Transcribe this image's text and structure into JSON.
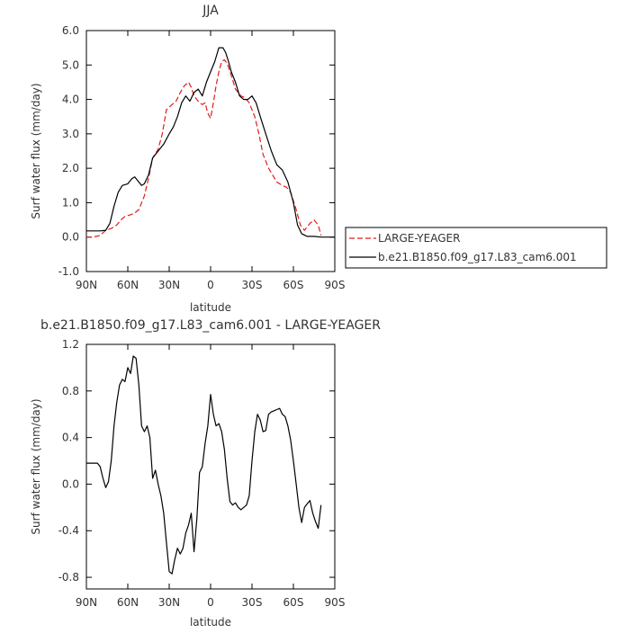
{
  "chart_data": [
    {
      "type": "line",
      "title": "JJA",
      "xlabel": "latitude",
      "ylabel": "Surf water flux (mm/day)",
      "xlim": [
        90,
        -90
      ],
      "ylim": [
        -1.0,
        6.0
      ],
      "x_ticks": [
        90,
        60,
        30,
        0,
        -30,
        -60,
        -90
      ],
      "x_tick_labels": [
        "90N",
        "60N",
        "30N",
        "0",
        "30S",
        "60S",
        "90S"
      ],
      "y_ticks": [
        -1.0,
        0.0,
        1.0,
        2.0,
        3.0,
        4.0,
        5.0,
        6.0
      ],
      "y_tick_labels": [
        "-1.0",
        "0.0",
        "1.0",
        "2.0",
        "3.0",
        "4.0",
        "5.0",
        "6.0"
      ],
      "grid": false,
      "legend_position": "right",
      "series": [
        {
          "name": "LARGE-YEAGER",
          "color": "#e41a1c",
          "style": "dashed",
          "x": [
            90,
            85,
            80,
            76,
            72,
            68,
            65,
            62,
            58,
            55,
            52,
            48,
            45,
            42,
            38,
            35,
            32,
            28,
            25,
            22,
            19,
            16,
            14,
            12,
            10,
            8,
            6,
            4,
            2,
            0,
            -2,
            -4,
            -6,
            -8,
            -10,
            -12,
            -15,
            -18,
            -22,
            -25,
            -28,
            -32,
            -35,
            -38,
            -42,
            -45,
            -48,
            -52,
            -55,
            -58,
            -62,
            -65,
            -68,
            -72,
            -75,
            -78,
            -80
          ],
          "values": [
            0.0,
            0.0,
            0.05,
            0.2,
            0.25,
            0.35,
            0.5,
            0.6,
            0.65,
            0.7,
            0.8,
            1.2,
            1.7,
            2.3,
            2.55,
            3.0,
            3.7,
            3.85,
            3.95,
            4.2,
            4.4,
            4.5,
            4.35,
            4.1,
            4.0,
            3.9,
            3.85,
            3.9,
            3.6,
            3.45,
            3.9,
            4.4,
            4.8,
            5.1,
            5.15,
            5.05,
            4.7,
            4.3,
            4.1,
            4.05,
            3.9,
            3.5,
            3.0,
            2.4,
            2.0,
            1.8,
            1.6,
            1.5,
            1.45,
            1.3,
            0.8,
            0.35,
            0.2,
            0.4,
            0.5,
            0.35,
            0.05
          ]
        },
        {
          "name": "b.e21.B1850.f09_g17.L83_cam6.001",
          "color": "#000000",
          "style": "solid",
          "x": [
            90,
            85,
            80,
            76,
            73,
            70,
            67,
            64,
            60,
            57,
            55,
            52,
            50,
            48,
            45,
            42,
            38,
            34,
            30,
            27,
            24,
            21,
            18,
            15,
            12,
            9,
            6,
            3,
            0,
            -3,
            -6,
            -9,
            -11,
            -13,
            -15,
            -18,
            -21,
            -24,
            -27,
            -30,
            -33,
            -36,
            -40,
            -44,
            -48,
            -52,
            -56,
            -60,
            -63,
            -66,
            -70,
            -75,
            -80,
            -85,
            -90
          ],
          "values": [
            0.18,
            0.18,
            0.18,
            0.2,
            0.4,
            0.9,
            1.3,
            1.5,
            1.55,
            1.7,
            1.75,
            1.6,
            1.5,
            1.55,
            1.8,
            2.3,
            2.5,
            2.7,
            3.0,
            3.2,
            3.5,
            3.9,
            4.1,
            3.95,
            4.2,
            4.3,
            4.1,
            4.5,
            4.8,
            5.1,
            5.5,
            5.5,
            5.35,
            5.1,
            4.8,
            4.5,
            4.1,
            4.0,
            4.0,
            4.1,
            3.9,
            3.5,
            3.0,
            2.5,
            2.1,
            1.95,
            1.6,
            1.0,
            0.35,
            0.1,
            0.02,
            0.02,
            0.0,
            0.0,
            0.0
          ]
        }
      ]
    },
    {
      "type": "line",
      "title": "b.e21.B1850.f09_g17.L83_cam6.001 - LARGE-YEAGER",
      "xlabel": "latitude",
      "ylabel": "Surf water flux (mm/day)",
      "xlim": [
        90,
        -90
      ],
      "ylim": [
        -0.9,
        1.2
      ],
      "x_ticks": [
        90,
        60,
        30,
        0,
        -30,
        -60,
        -90
      ],
      "x_tick_labels": [
        "90N",
        "60N",
        "30N",
        "0",
        "30S",
        "60S",
        "90S"
      ],
      "y_ticks": [
        -0.8,
        -0.4,
        0.0,
        0.4,
        0.8,
        1.2
      ],
      "y_tick_labels": [
        "-0.8",
        "-0.4",
        "0.0",
        "0.4",
        "0.8",
        "1.2"
      ],
      "grid": false,
      "series": [
        {
          "color": "#000000",
          "style": "solid",
          "x": [
            90,
            86,
            82,
            80,
            78,
            76,
            74,
            72,
            70,
            68,
            66,
            64,
            62,
            60,
            58,
            56,
            54,
            52,
            50,
            48,
            46,
            44,
            42,
            40,
            38,
            36,
            34,
            32,
            30,
            28,
            26,
            24,
            22,
            20,
            18,
            16,
            14,
            12,
            10,
            8,
            6,
            4,
            2,
            0,
            -2,
            -4,
            -6,
            -8,
            -10,
            -12,
            -14,
            -16,
            -18,
            -20,
            -22,
            -24,
            -26,
            -28,
            -30,
            -32,
            -34,
            -36,
            -38,
            -40,
            -42,
            -44,
            -46,
            -48,
            -50,
            -52,
            -54,
            -56,
            -58,
            -60,
            -62,
            -64,
            -66,
            -68,
            -70,
            -72,
            -74,
            -76,
            -78,
            -80
          ],
          "values": [
            0.18,
            0.18,
            0.18,
            0.15,
            0.05,
            -0.03,
            0.02,
            0.2,
            0.5,
            0.7,
            0.85,
            0.9,
            0.88,
            1.0,
            0.95,
            1.1,
            1.08,
            0.85,
            0.5,
            0.45,
            0.5,
            0.4,
            0.05,
            0.12,
            0.0,
            -0.1,
            -0.25,
            -0.5,
            -0.75,
            -0.77,
            -0.65,
            -0.55,
            -0.6,
            -0.55,
            -0.42,
            -0.35,
            -0.25,
            -0.58,
            -0.3,
            0.1,
            0.15,
            0.35,
            0.5,
            0.77,
            0.6,
            0.5,
            0.52,
            0.45,
            0.3,
            0.05,
            -0.15,
            -0.18,
            -0.16,
            -0.2,
            -0.22,
            -0.2,
            -0.18,
            -0.1,
            0.2,
            0.45,
            0.6,
            0.55,
            0.45,
            0.46,
            0.6,
            0.62,
            0.63,
            0.64,
            0.65,
            0.6,
            0.58,
            0.5,
            0.38,
            0.2,
            0.0,
            -0.2,
            -0.33,
            -0.2,
            -0.17,
            -0.14,
            -0.25,
            -0.32,
            -0.38,
            -0.18
          ]
        }
      ]
    }
  ]
}
